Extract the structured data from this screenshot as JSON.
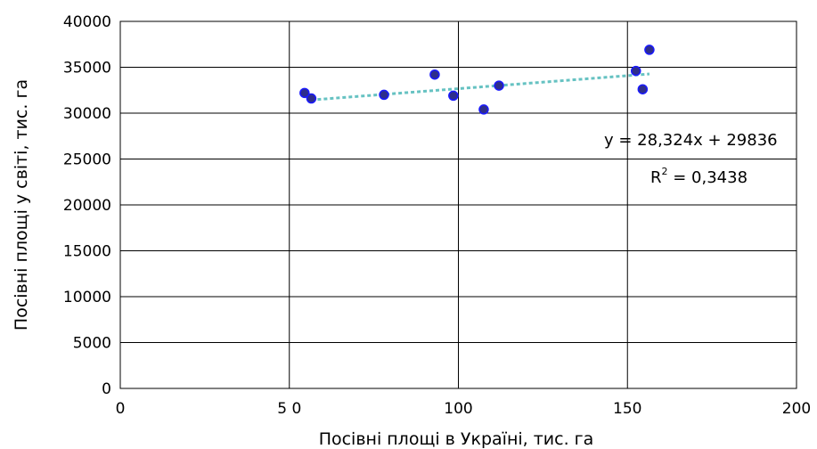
{
  "chart_data": {
    "type": "scatter",
    "xlabel": "Посівні площі в Україні, тис. га",
    "ylabel": "Посівні площі у світі, тис. га",
    "xlim": [
      0,
      200
    ],
    "ylim": [
      0,
      40000
    ],
    "x_ticks": [
      0,
      50,
      100,
      150,
      200
    ],
    "x_tick_labels": [
      "0",
      "5 0",
      "100",
      "150",
      "200"
    ],
    "y_ticks": [
      0,
      5000,
      10000,
      15000,
      20000,
      25000,
      30000,
      35000,
      40000
    ],
    "y_tick_labels": [
      "0",
      "5000",
      "10000",
      "15000",
      "20000",
      "25000",
      "30000",
      "35000",
      "40000"
    ],
    "grid": true,
    "series": [
      {
        "points": [
          {
            "x": 54.5,
            "y": 32200
          },
          {
            "x": 56.5,
            "y": 31600
          },
          {
            "x": 78.0,
            "y": 32000
          },
          {
            "x": 93.0,
            "y": 34200
          },
          {
            "x": 98.5,
            "y": 31900
          },
          {
            "x": 107.5,
            "y": 30400
          },
          {
            "x": 112.0,
            "y": 33000
          },
          {
            "x": 152.5,
            "y": 34600
          },
          {
            "x": 154.5,
            "y": 32600
          },
          {
            "x": 156.5,
            "y": 36900
          }
        ],
        "marker_color": "#2e2e8c",
        "marker_edge": "#1a1aff"
      }
    ],
    "trendline": {
      "x_range": [
        56.5,
        156.5
      ],
      "slope": 28.324,
      "intercept": 29836,
      "color": "#66c2c2",
      "equation": "y = 28,324x + 29836",
      "r2_prefix": "R",
      "r2_superscript": "2",
      "r2_value": " = 0,3438"
    }
  }
}
